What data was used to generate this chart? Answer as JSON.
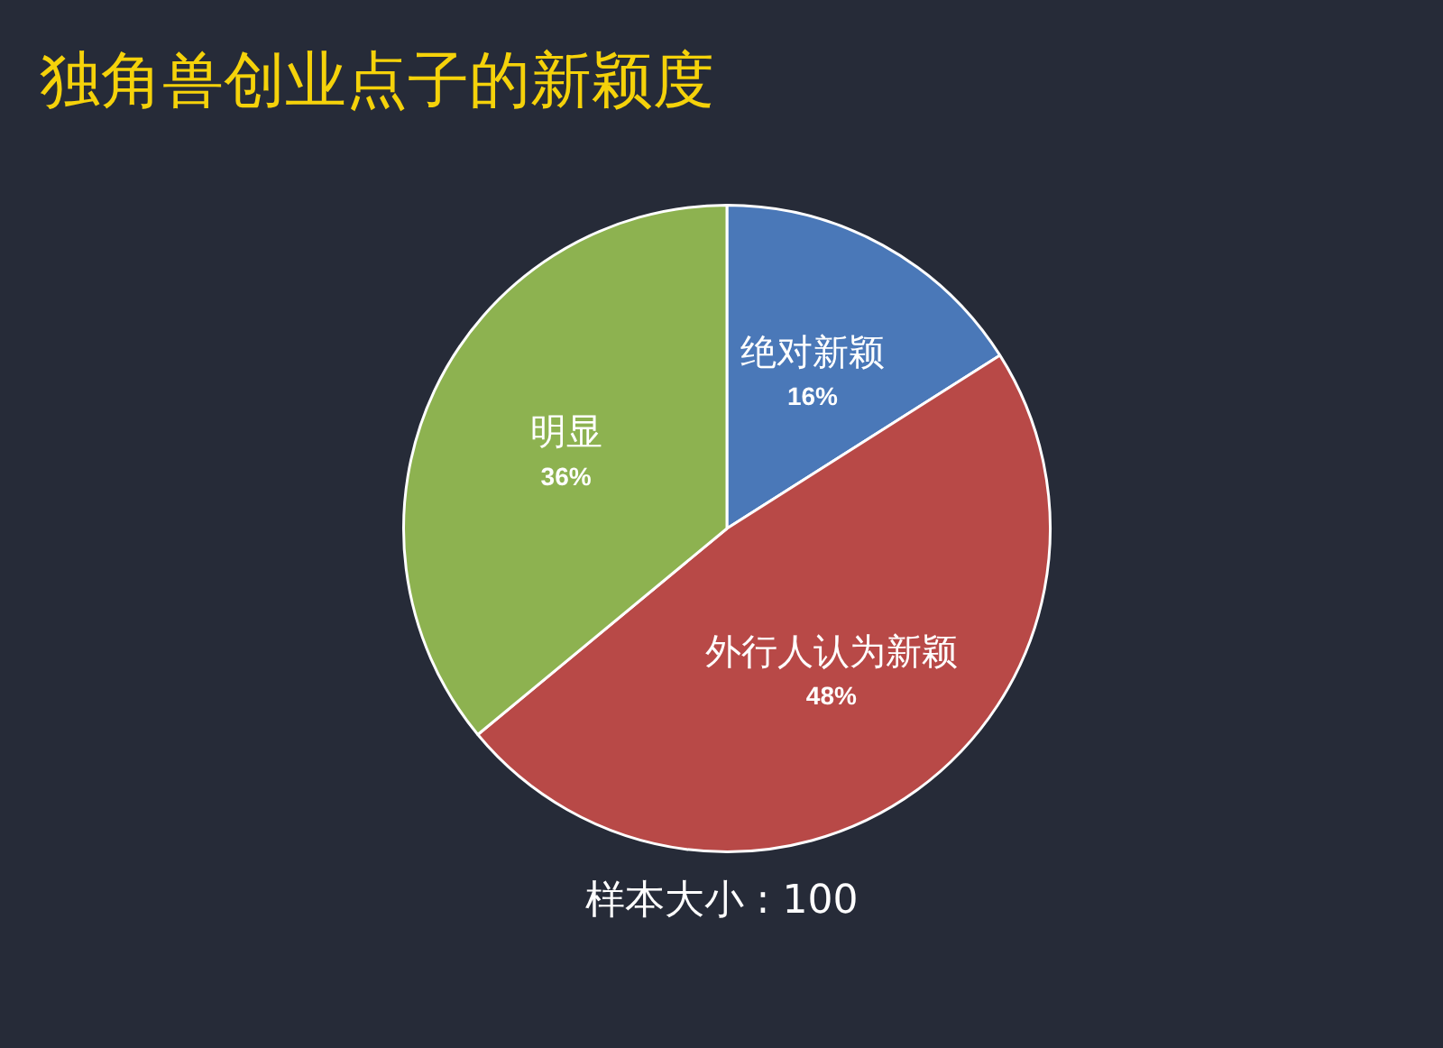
{
  "chart_data": {
    "type": "pie",
    "title": "独角兽创业点子的新颖度",
    "categories": [
      "绝对新颖",
      "外行人认为新颖",
      "明显"
    ],
    "values": [
      16,
      48,
      36
    ],
    "colors": [
      "#4a78b8",
      "#b84947",
      "#8db250"
    ],
    "value_labels": [
      "16%",
      "48%",
      "36%"
    ],
    "legend": false,
    "annotations": [
      "样本大小 : 100"
    ]
  }
}
